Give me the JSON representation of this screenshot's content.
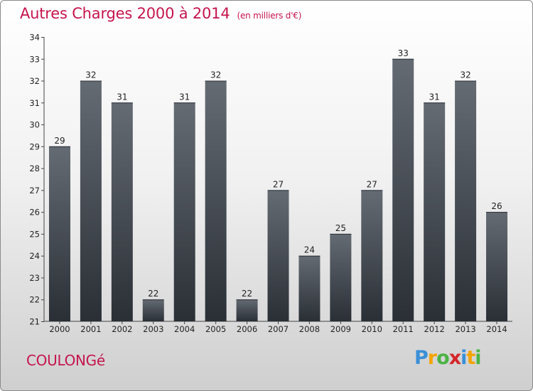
{
  "title": "Autres Charges 2000 à 2014",
  "subtitle": "(en milliers d'€)",
  "commune": "COULONGé",
  "logo": {
    "letters": [
      "P",
      "r",
      "o",
      "x",
      "i",
      "t",
      "i"
    ],
    "colors": [
      "#3a8fd8",
      "#f3a400",
      "#4ab344",
      "#d4262a",
      "#3a8fd8",
      "#f3a400",
      "#4ab344"
    ]
  },
  "colors": {
    "title": "#c5154e",
    "bar_top": "#646a72",
    "bar_bottom": "#2a2f36"
  },
  "chart_data": {
    "type": "bar",
    "title": "Autres Charges 2000 à 2014",
    "subtitle": "(en milliers d'€)",
    "categories": [
      "2000",
      "2001",
      "2002",
      "2003",
      "2004",
      "2005",
      "2006",
      "2007",
      "2008",
      "2009",
      "2010",
      "2011",
      "2012",
      "2013",
      "2014"
    ],
    "values": [
      29,
      32,
      31,
      22,
      31,
      32,
      22,
      27,
      24,
      25,
      27,
      33,
      31,
      32,
      26
    ],
    "ylim": [
      21,
      34
    ],
    "yticks": [
      21,
      22,
      23,
      24,
      25,
      26,
      27,
      28,
      29,
      30,
      31,
      32,
      33,
      34
    ],
    "grid": false,
    "xlabel": "",
    "ylabel": ""
  }
}
